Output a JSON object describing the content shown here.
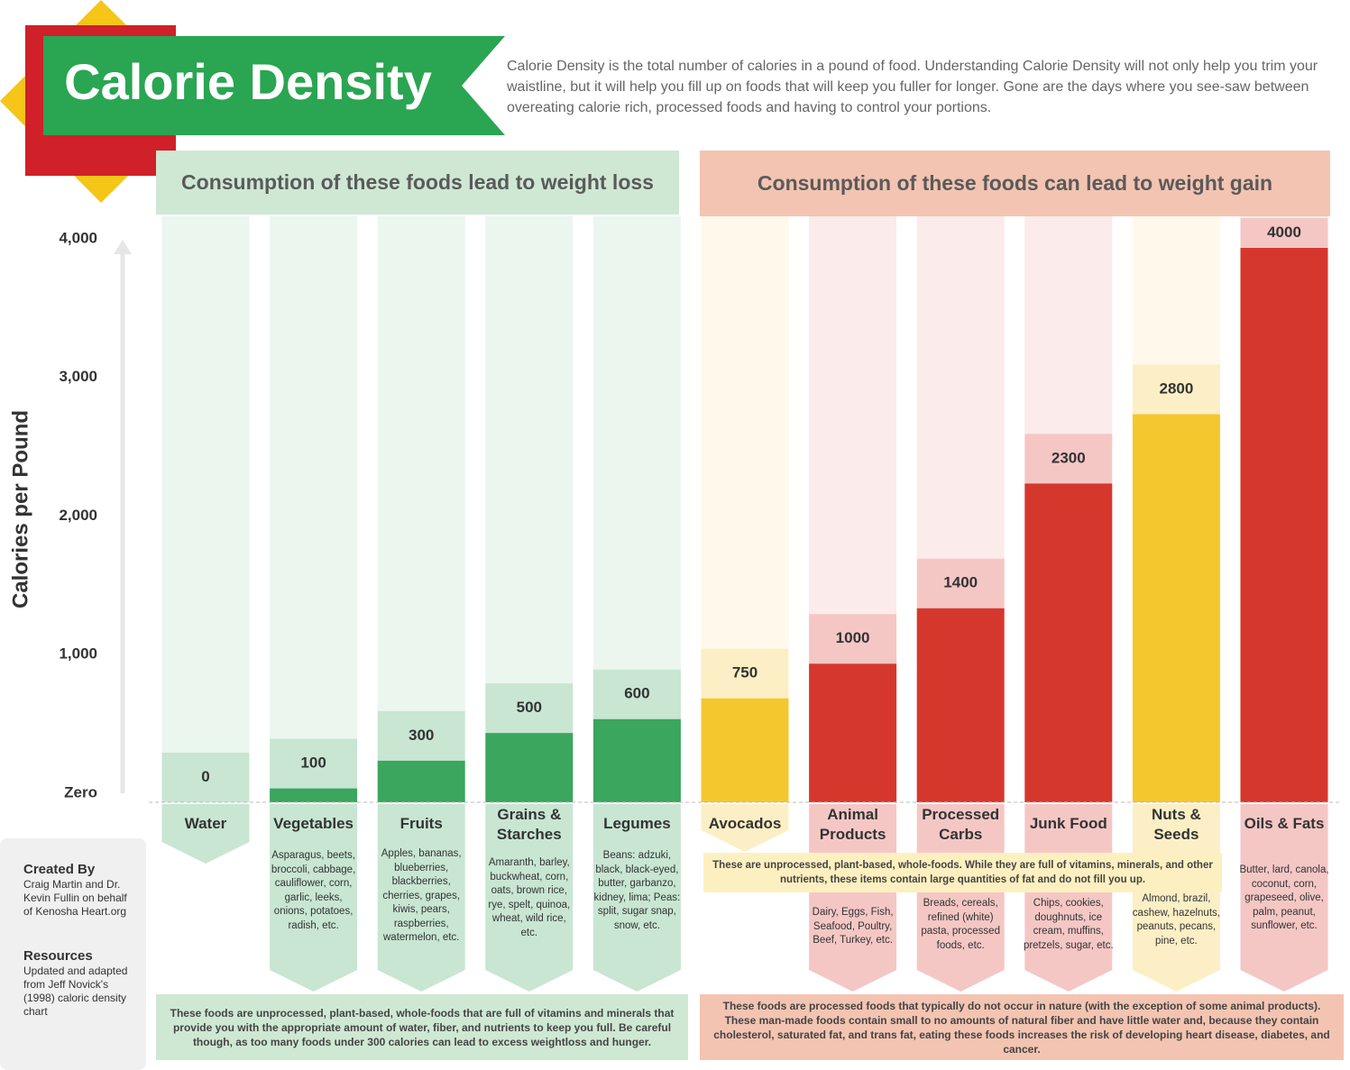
{
  "chart_data": {
    "type": "bar",
    "title": "Calorie Density",
    "intro": "Calorie Density  is the total number of calories in a pound of food.  Understanding Calorie Density will not only help you trim your waistline, but it will help you fill up on foods that will keep you fuller for longer.  Gone are the days where you see-saw between overeating calorie rich, processed foods and having to control your portions.",
    "y_label": "Calories per Pound",
    "categories": [
      "Water",
      "Vegetables",
      "Fruits",
      "Grains & Starches",
      "Legumes",
      "Avocados",
      "Animal Products",
      "Processed Carbs",
      "Junk Food",
      "Nuts & Seeds",
      "Oils & Fats"
    ],
    "values": [
      0,
      100,
      300,
      500,
      600,
      750,
      1000,
      1400,
      2300,
      2800,
      4000
    ],
    "colors": [
      "#3aa65e",
      "#3aa65e",
      "#3aa65e",
      "#3aa65e",
      "#3aa65e",
      "#f4c72e",
      "#d6372d",
      "#d6372d",
      "#d6372d",
      "#f4c72e",
      "#d6372d"
    ],
    "descriptions": [
      null,
      "Asparagus, beets, broccoli, cabbage, cauliflower, corn, garlic, leeks, onions, potatoes, radish, etc.",
      "Apples, bananas, blueberries, blackberries, cherries, grapes, kiwis, pears, raspberries, watermelon, etc.",
      "Amaranth, barley, buckwheat, corn, oats, brown rice, rye, spelt, quinoa, wheat, wild rice, etc.",
      "Beans: adzuki, black, black-eyed, butter, garbanzo, kidney, lima; Peas: split, sugar snap, snow, etc.",
      null,
      "Dairy, Eggs, Fish, Seafood, Poultry, Beef, Turkey, etc.",
      "Breads, cereals, refined (white) pasta, processed foods, etc.",
      "Chips, cookies, doughnuts, ice cream, muffins, pretzels, sugar, etc.",
      "Almond, brazil, cashew, hazelnuts, peanuts, pecans, pine, etc.",
      "Butter, lard, canola, coconut, corn, grapeseed, olive, palm, peanut, sunflower, etc."
    ],
    "ylim": [
      0,
      4000
    ],
    "yticks": [
      {
        "value": 0,
        "label": "Zero"
      },
      {
        "value": 1000,
        "label": "1,000"
      },
      {
        "value": 2000,
        "label": "2,000"
      },
      {
        "value": 3000,
        "label": "3,000"
      },
      {
        "value": 4000,
        "label": "4,000"
      }
    ],
    "grid": false,
    "groups": [
      {
        "title": "Consumption of these foods lead to weight loss",
        "footer": "These foods are unprocessed, plant-based, whole-foods that are full of vitamins and minerals that provide you with the appropriate amount of water, fiber, and nutrients to keep you full.  Be careful though, as too many foods under 300 calories can lead to excess weightloss and hunger."
      },
      {
        "title": "Consumption of these foods can lead to weight gain",
        "footer": "These foods are processed foods that typically do not occur in nature (with the exception of some animal products).  These man-made foods contain small to no amounts of natural fiber and have little water and, because they contain cholesterol, saturated fat, and trans fat, eating these foods increases the risk of developing heart disease, diabetes, and cancer."
      }
    ],
    "whole_food_note": "These are unprocessed, plant-based, whole-foods.  While they are full of vitamins, minerals, and other nutrients, these items contain large quantities of fat and do not fill you up.",
    "credits": {
      "heading": "Created By",
      "text": "Craig Martin and Dr. Kevin Fullin on behalf of Kenosha Heart.org",
      "resources_heading": "Resources",
      "resources_text": "Updated and adapted from Jeff Novick's (1998) caloric density chart"
    }
  }
}
